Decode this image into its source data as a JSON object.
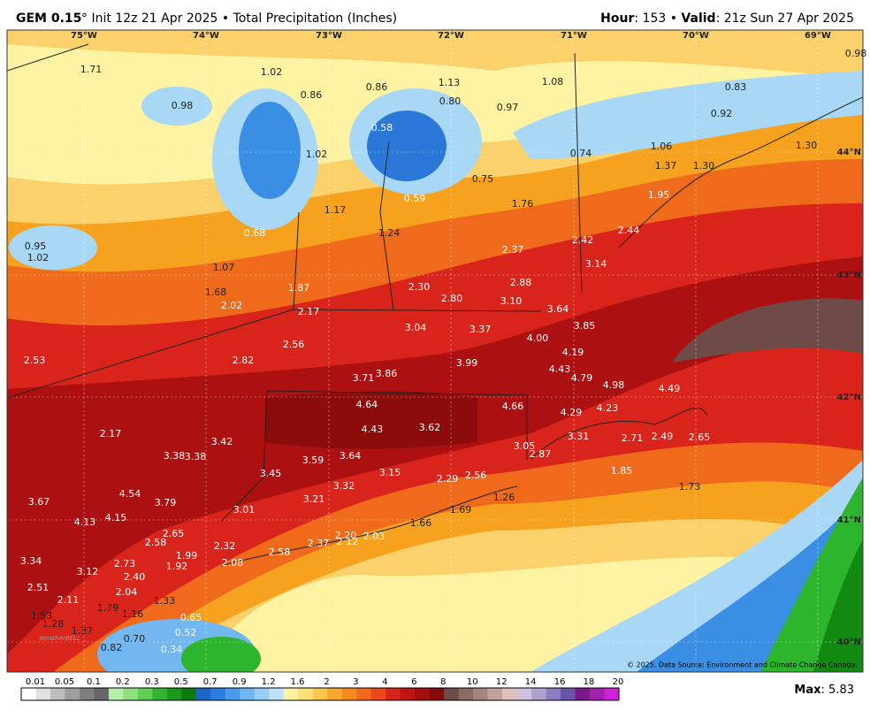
{
  "header": {
    "model": "GEM 0.15",
    "title": "° Init 12z 21 Apr 2025 • Total Precipitation (Inches)",
    "hour_label": "Hour",
    "hour": ": 153 • ",
    "valid_label": "Valid",
    "valid": ": 21z Sun 27 Apr 2025"
  },
  "map": {
    "longitudes": [
      "75°W",
      "74°W",
      "73°W",
      "72°W",
      "71°W",
      "70°W",
      "69°W"
    ],
    "latitudes": [
      "44°N",
      "43°N",
      "42°N",
      "41°N",
      "40°N"
    ],
    "values": [
      "1.71",
      "1.02",
      "0.86",
      "0.86",
      "1.13",
      "0.80",
      "0.97",
      "1.08",
      "0.83",
      "0.98",
      "0.92",
      "0.98",
      "0.58",
      "1.02",
      "0.74",
      "1.06",
      "1.30",
      "0.75",
      "0.59",
      "1.76",
      "1.37",
      "1.30",
      "1.95",
      "1.17",
      "0.68",
      "0.95",
      "1.02",
      "1.24",
      "2.42",
      "2.44",
      "2.37",
      "1.07",
      "3.14",
      "1.68",
      "1.87",
      "2.30",
      "2.88",
      "2.02",
      "2.80",
      "3.10",
      "3.64",
      "2.17",
      "3.04",
      "3.37",
      "3.85",
      "4.00",
      "2.56",
      "4.19",
      "2.53",
      "2.82",
      "3.99",
      "3.71",
      "3.86",
      "4.43",
      "4.79",
      "4.98",
      "4.49",
      "4.64",
      "4.66",
      "4.29",
      "4.23",
      "2.17",
      "4.43",
      "3.62",
      "3.31",
      "2.71",
      "2.49",
      "2.65",
      "3.42",
      "3.38",
      "3.38",
      "3.05",
      "2.87",
      "3.59",
      "3.64",
      "3.15",
      "3.45",
      "2.29",
      "2.56",
      "1.85",
      "4.54",
      "3.32",
      "1.73",
      "3.67",
      "3.79",
      "3.21",
      "1.26",
      "3.01",
      "4.13",
      "4.15",
      "1.69",
      "1.66",
      "2.65",
      "2.58",
      "2.20",
      "2.03",
      "2.32",
      "2.58",
      "2.37",
      "2.12",
      "1.99",
      "2.08",
      "1.92",
      "3.34",
      "3.12",
      "2.73",
      "2.40",
      "2.51",
      "2.04",
      "1.33",
      "2.11",
      "1.79",
      "1.16",
      "1.53",
      "0.65",
      "1.28",
      "1.37",
      "0.52",
      "0.70",
      "0.82",
      "0.34"
    ],
    "logo": "WeatherBELL",
    "credit": "© 2025. Data Source: Environment and Climate Change Canada."
  },
  "legend": {
    "labels": [
      "0.01",
      "0.05",
      "0.1",
      "0.2",
      "0.3",
      "0.5",
      "0.7",
      "0.9",
      "1.2",
      "1.6",
      "2",
      "3",
      "4",
      "6",
      "8",
      "10",
      "12",
      "14",
      "16",
      "18",
      "20"
    ]
  },
  "max": {
    "label": "Max",
    "value": ": 5.83"
  }
}
